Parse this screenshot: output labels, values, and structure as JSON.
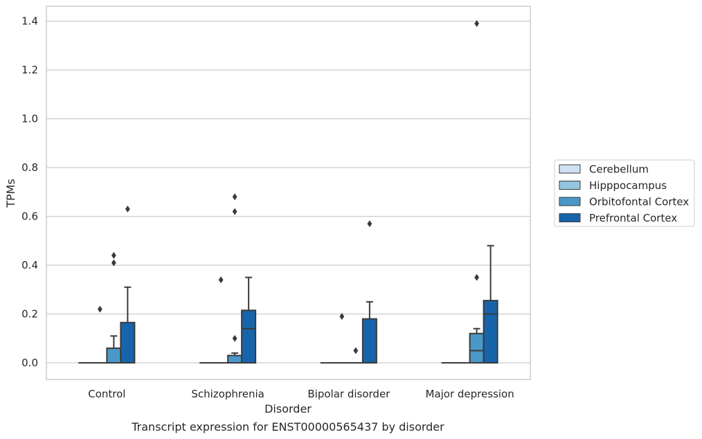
{
  "chart_data": {
    "type": "box",
    "title": "",
    "caption": "Transcript expression for ENST00000565437 by disorder",
    "xlabel": "Disorder",
    "ylabel": "TPMs",
    "ylim": [
      -0.065,
      1.46
    ],
    "yticks": [
      0.0,
      0.2,
      0.4,
      0.6,
      0.8,
      1.0,
      1.2,
      1.4
    ],
    "ytick_labels": [
      "0.0",
      "0.2",
      "0.4",
      "0.6",
      "0.8",
      "1.0",
      "1.2",
      "1.4"
    ],
    "grid": "horizontal",
    "legend_position": "right",
    "categories": [
      "Control",
      "Schizophrenia",
      "Bipolar disorder",
      "Major depression"
    ],
    "series": [
      {
        "name": "Cerebellum",
        "color": "#d0e1f2",
        "boxes": [
          {
            "q1": 0,
            "median": 0,
            "q3": 0,
            "whisker_low": 0,
            "whisker_high": 0,
            "outliers": []
          },
          {
            "q1": 0,
            "median": 0,
            "q3": 0,
            "whisker_low": 0,
            "whisker_high": 0,
            "outliers": []
          },
          {
            "q1": 0,
            "median": 0,
            "q3": 0,
            "whisker_low": 0,
            "whisker_high": 0,
            "outliers": []
          },
          {
            "q1": 0,
            "median": 0,
            "q3": 0,
            "whisker_low": 0,
            "whisker_high": 0,
            "outliers": []
          }
        ]
      },
      {
        "name": "Hipppocampus",
        "color": "#94c4df",
        "boxes": [
          {
            "q1": 0,
            "median": 0,
            "q3": 0,
            "whisker_low": 0,
            "whisker_high": 0,
            "outliers": [
              0.22
            ]
          },
          {
            "q1": 0,
            "median": 0,
            "q3": 0,
            "whisker_low": 0,
            "whisker_high": 0,
            "outliers": [
              0.34
            ]
          },
          {
            "q1": 0,
            "median": 0,
            "q3": 0,
            "whisker_low": 0,
            "whisker_high": 0,
            "outliers": [
              0.19
            ]
          },
          {
            "q1": 0,
            "median": 0,
            "q3": 0,
            "whisker_low": 0,
            "whisker_high": 0,
            "outliers": []
          }
        ]
      },
      {
        "name": "Orbitofontal Cortex",
        "color": "#4a98c9",
        "boxes": [
          {
            "q1": 0,
            "median": 0,
            "q3": 0.06,
            "whisker_low": 0,
            "whisker_high": 0.11,
            "outliers": [
              0.41,
              0.44
            ]
          },
          {
            "q1": 0,
            "median": 0,
            "q3": 0.03,
            "whisker_low": 0,
            "whisker_high": 0.04,
            "outliers": [
              0.1,
              0.62,
              0.68
            ]
          },
          {
            "q1": 0,
            "median": 0,
            "q3": 0,
            "whisker_low": 0,
            "whisker_high": 0,
            "outliers": [
              0.05
            ]
          },
          {
            "q1": 0,
            "median": 0.05,
            "q3": 0.12,
            "whisker_low": 0,
            "whisker_high": 0.14,
            "outliers": [
              0.35,
              1.39
            ]
          }
        ]
      },
      {
        "name": "Prefrontal Cortex",
        "color": "#1764ab",
        "boxes": [
          {
            "q1": 0,
            "median": 0,
            "q3": 0.165,
            "whisker_low": 0,
            "whisker_high": 0.31,
            "outliers": [
              0.63
            ]
          },
          {
            "q1": 0,
            "median": 0.14,
            "q3": 0.215,
            "whisker_low": 0,
            "whisker_high": 0.35,
            "outliers": []
          },
          {
            "q1": 0,
            "median": 0,
            "q3": 0.18,
            "whisker_low": 0,
            "whisker_high": 0.25,
            "outliers": [
              0.57
            ]
          },
          {
            "q1": 0,
            "median": 0.2,
            "q3": 0.255,
            "whisker_low": 0,
            "whisker_high": 0.48,
            "outliers": []
          }
        ]
      }
    ]
  }
}
